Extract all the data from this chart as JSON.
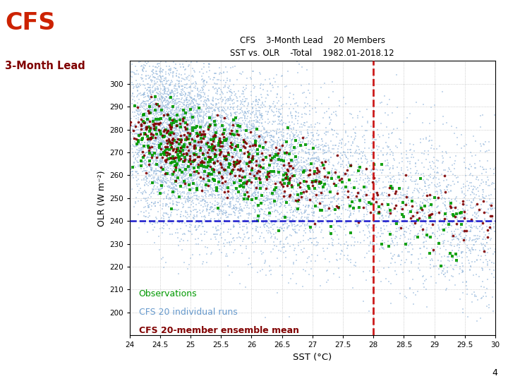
{
  "title_line1": "CFS    3-Month Lead    20 Members",
  "title_line2": "SST vs. OLR    -Total    1982.01-2018.12",
  "xlabel": "SST (°C)",
  "ylabel": "OLR (W m⁻²)",
  "xlim": [
    24,
    30
  ],
  "ylim": [
    190,
    310
  ],
  "xticks": [
    24,
    24.5,
    25,
    25.5,
    26,
    26.5,
    27,
    27.5,
    28,
    28.5,
    29,
    29.5,
    30
  ],
  "yticks": [
    200,
    210,
    220,
    230,
    240,
    250,
    260,
    270,
    280,
    290,
    300
  ],
  "hline_y": 240,
  "vline_x": 28,
  "hline_color": "#1a1acc",
  "vline_color": "#cc1a1a",
  "obs_color": "#009900",
  "cfs_runs_color": "#99bbdd",
  "cfs_mean_color": "#800000",
  "title_color": "#000000",
  "outer_title_cfs": "CFS",
  "outer_title_lead": "3-Month Lead",
  "outer_title_cfs_color": "#cc2200",
  "outer_title_lead_color": "#800000",
  "legend_labels": [
    "Observations",
    "CFS 20 individual runs",
    "CFS 20-member ensemble mean"
  ],
  "legend_colors": [
    "#009900",
    "#6699cc",
    "#800000"
  ],
  "page_number": "4",
  "seed": 42,
  "n_obs": 444,
  "n_cfs_runs": 8880,
  "n_cfs_mean": 444
}
